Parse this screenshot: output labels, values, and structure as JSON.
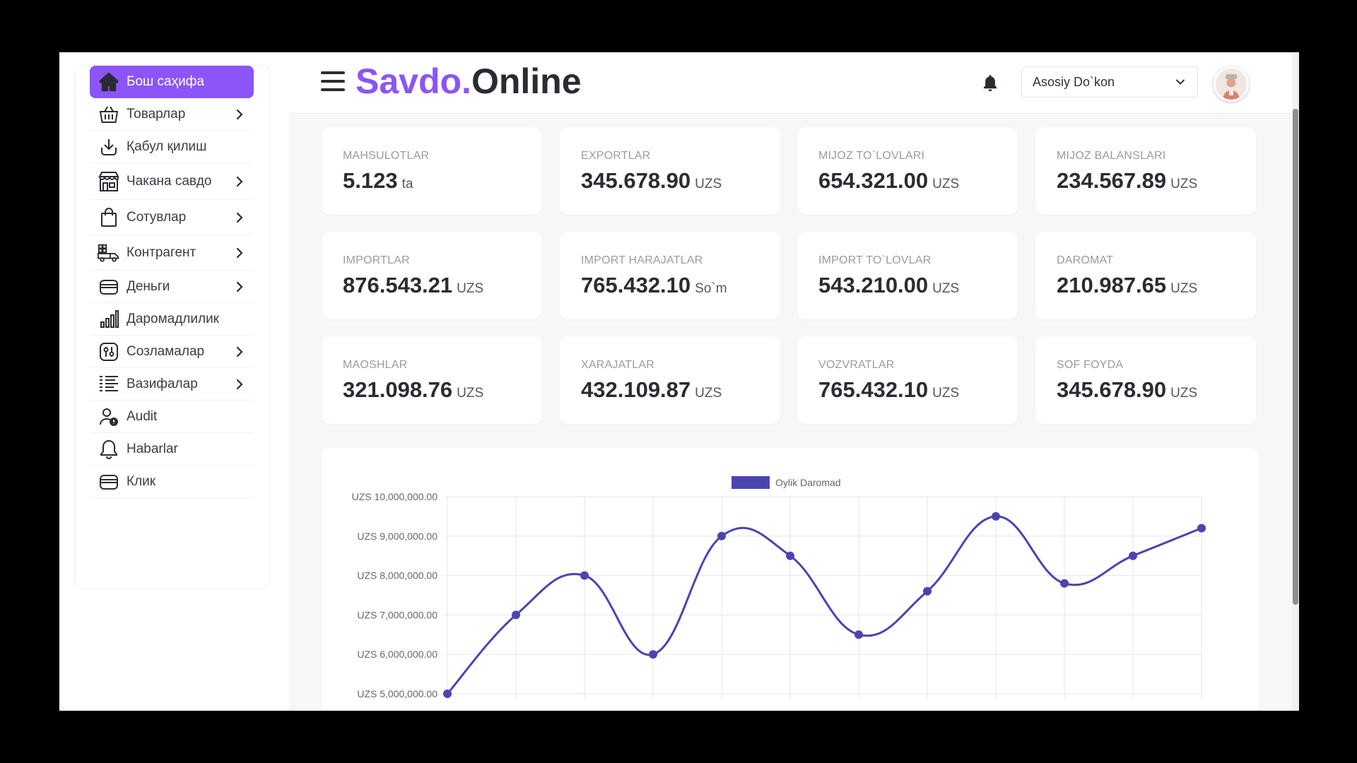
{
  "sidebar": {
    "items": [
      {
        "label": "Бош саҳифа",
        "icon": "home-icon",
        "active": true,
        "chevron": false
      },
      {
        "label": "Товарлар",
        "icon": "basket-icon",
        "chevron": true
      },
      {
        "label": "Қабул қилиш",
        "icon": "download-icon",
        "chevron": false
      },
      {
        "label": "Чакана савдо",
        "icon": "store-icon",
        "chevron": true
      },
      {
        "label": "Сотувлар",
        "icon": "shopping-bag-icon",
        "chevron": true
      },
      {
        "label": "Контрагент",
        "icon": "truck-icon",
        "chevron": true
      },
      {
        "label": "Деньги",
        "icon": "wallet-icon",
        "chevron": true
      },
      {
        "label": "Даромадлилик",
        "icon": "bar-chart-icon",
        "chevron": false
      },
      {
        "label": "Созламалар",
        "icon": "settings-sliders-icon",
        "chevron": true
      },
      {
        "label": "Вазифалар",
        "icon": "task-list-icon",
        "chevron": true
      },
      {
        "label": "Audit",
        "icon": "user-audit-icon",
        "chevron": false
      },
      {
        "label": "Habarlar",
        "icon": "bell-icon",
        "chevron": false
      },
      {
        "label": "Клик",
        "icon": "card-icon",
        "chevron": false
      }
    ]
  },
  "header": {
    "brand_part1": "Savdo.",
    "brand_part2": "Online",
    "store": "Asosiy Do`kon"
  },
  "cards": [
    {
      "title": "MAHSULOTLAR",
      "value": "5.123",
      "unit": "ta"
    },
    {
      "title": "EXPORTLAR",
      "value": "345.678.90",
      "unit": "UZS"
    },
    {
      "title": "MIJOZ TO`LOVLARI",
      "value": "654.321.00",
      "unit": "UZS"
    },
    {
      "title": "MIJOZ BALANSLARI",
      "value": "234.567.89",
      "unit": "UZS"
    },
    {
      "title": "IMPORTLAR",
      "value": "876.543.21",
      "unit": "UZS"
    },
    {
      "title": "IMPORT HARAJATLAR",
      "value": "765.432.10",
      "unit": "So`m"
    },
    {
      "title": "IMPORT TO`LOVLAR",
      "value": "543.210.00",
      "unit": "UZS"
    },
    {
      "title": "DAROMAT",
      "value": "210.987.65",
      "unit": "UZS"
    },
    {
      "title": "MAOSHLAR",
      "value": "321.098.76",
      "unit": "UZS"
    },
    {
      "title": "XARAJATLAR",
      "value": "432.109.87",
      "unit": "UZS"
    },
    {
      "title": "VOZVRATLAR",
      "value": "765.432.10",
      "unit": "UZS"
    },
    {
      "title": "SOF FOYDA",
      "value": "345.678.90",
      "unit": "UZS"
    }
  ],
  "colors": {
    "accent": "#8b55f7",
    "line": "#4b44b0"
  },
  "chart_data": {
    "type": "line",
    "series": [
      {
        "name": "Oylik Daromad",
        "values": [
          5000000,
          7000000,
          8000000,
          6000000,
          9000000,
          8500000,
          6500000,
          7600000,
          9500000,
          7800000,
          8500000,
          9200000
        ]
      }
    ],
    "ylim": [
      5000000,
      10000000
    ],
    "yticks": [
      "UZS 10,000,000.00",
      "UZS 9,000,000.00",
      "UZS 8,000,000.00",
      "UZS 7,000,000.00",
      "UZS 6,000,000.00",
      "UZS 5,000,000.00"
    ],
    "legend": "top-center",
    "grid": true
  }
}
